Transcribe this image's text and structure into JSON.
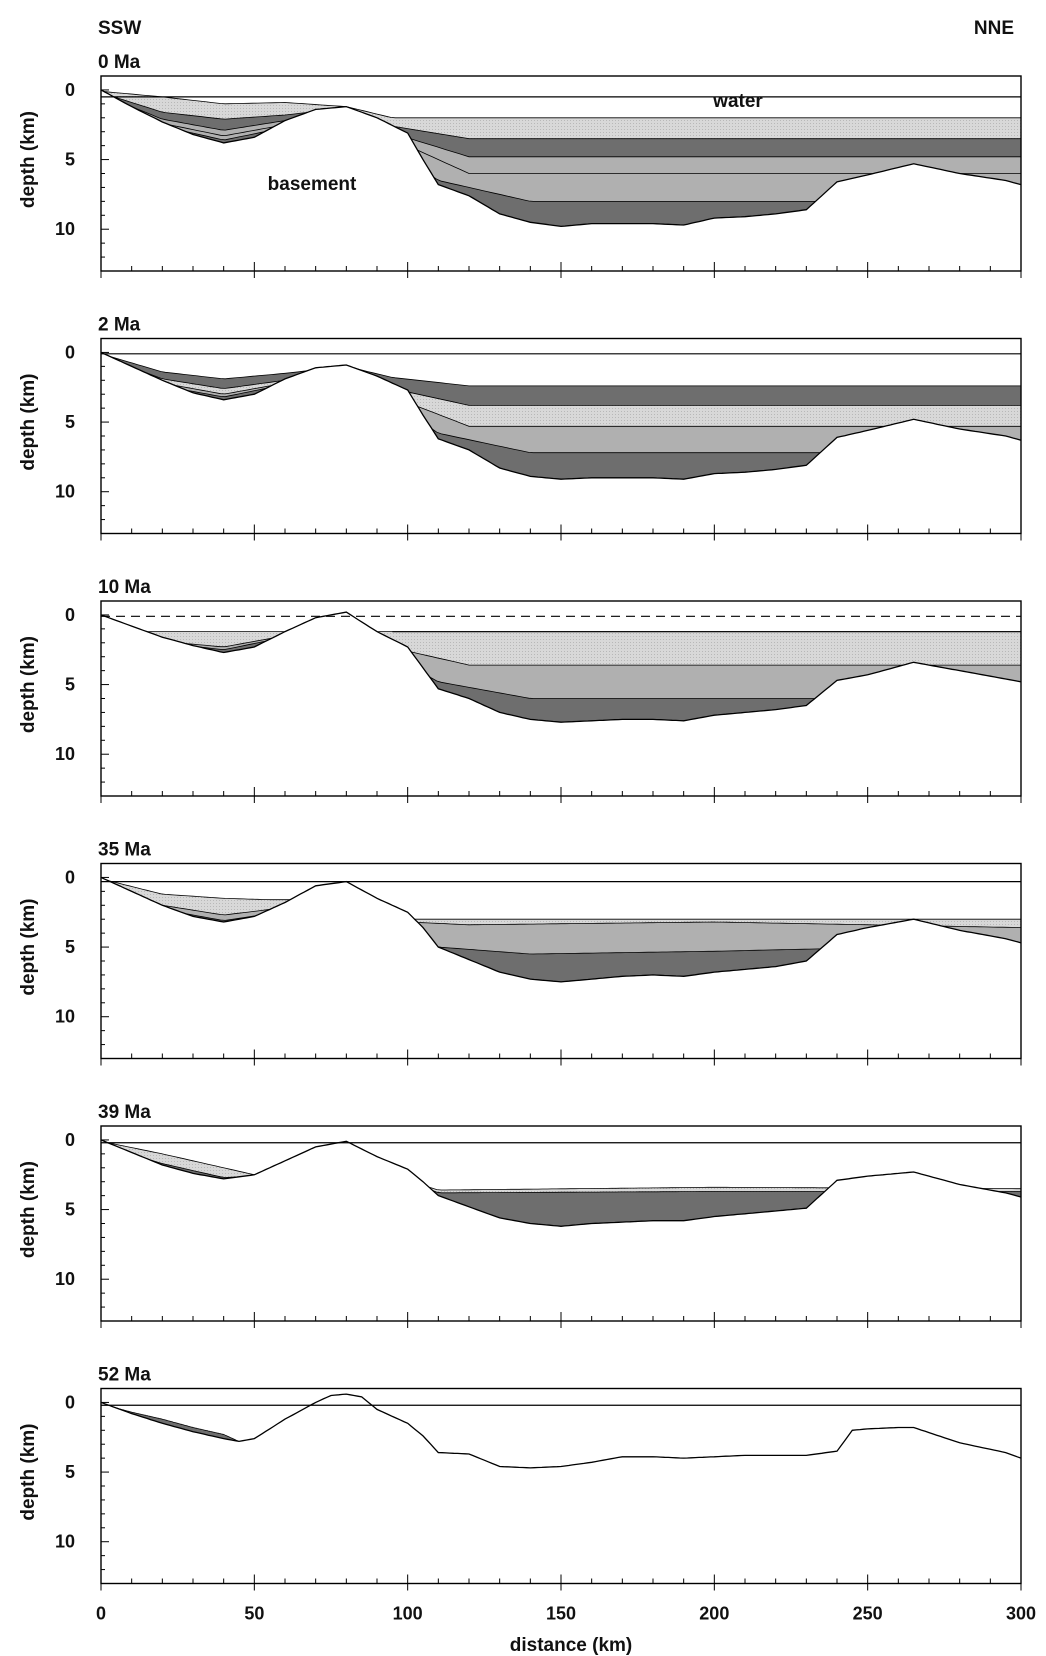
{
  "figure": {
    "left_label": "SSW",
    "right_label": "NNE",
    "water_label": "water",
    "basement_label": "basement"
  },
  "colors": {
    "water_layer": "#ffffff",
    "layer_light": "#d3d3d3",
    "layer_medium": "#b0b0b0",
    "layer_dark": "#6e6e6e",
    "line": "#000000"
  },
  "chart_data": [
    {
      "type": "area",
      "title": "0 Ma",
      "xlabel": "",
      "ylabel": "depth (km)",
      "xlim": [
        0,
        300
      ],
      "ylim": [
        13,
        -1
      ],
      "yticks": [
        "0",
        "5",
        "10"
      ],
      "sea_level": 0.5,
      "sea_level_style": "solid",
      "basement_profile": {
        "x": [
          0,
          10,
          20,
          30,
          40,
          50,
          60,
          70,
          80,
          90,
          100,
          105,
          110,
          120,
          130,
          140,
          150,
          160,
          170,
          180,
          190,
          200,
          210,
          220,
          230,
          240,
          250,
          265,
          280,
          295,
          300
        ],
        "depth": [
          0,
          1.2,
          2.3,
          3.2,
          3.8,
          3.4,
          2.2,
          1.4,
          1.2,
          2.0,
          3.1,
          5.0,
          6.8,
          7.6,
          8.9,
          9.5,
          9.8,
          9.6,
          9.6,
          9.6,
          9.7,
          9.2,
          9.1,
          8.9,
          8.6,
          6.6,
          6.1,
          5.3,
          6.0,
          6.5,
          6.8
        ]
      },
      "layer_tops": [
        {
          "shade": "light",
          "x": [
            0,
            20,
            40,
            60,
            80,
            95,
            120,
            200,
            300
          ],
          "depth": [
            0.1,
            0.5,
            1.0,
            0.9,
            1.2,
            2.0,
            2.0,
            2.0,
            2.0
          ]
        },
        {
          "shade": "dark",
          "x": [
            0,
            20,
            40,
            60,
            80,
            95,
            120,
            200,
            300
          ],
          "depth": [
            0.2,
            1.6,
            2.1,
            1.8,
            1.3,
            2.6,
            3.5,
            3.5,
            3.5
          ]
        },
        {
          "shade": "medium",
          "x": [
            0,
            20,
            40,
            60,
            80,
            95,
            120,
            200,
            300
          ],
          "depth": [
            0.3,
            2.1,
            2.9,
            2.2,
            1.4,
            3.1,
            4.8,
            4.8,
            4.8
          ]
        },
        {
          "shade": "medium",
          "x": [
            0,
            20,
            40,
            60,
            80,
            100,
            120,
            200,
            300
          ],
          "depth": [
            0.4,
            2.4,
            3.3,
            2.5,
            1.5,
            4.0,
            6.0,
            6.0,
            6.0
          ]
        },
        {
          "shade": "dark",
          "x": [
            0,
            20,
            40,
            60,
            80,
            110,
            140,
            200,
            300
          ],
          "depth": [
            0.5,
            2.6,
            3.6,
            2.7,
            1.6,
            6.5,
            8.0,
            8.0,
            8.0
          ]
        }
      ]
    },
    {
      "type": "area",
      "title": "2 Ma",
      "xlabel": "",
      "ylabel": "depth (km)",
      "xlim": [
        0,
        300
      ],
      "ylim": [
        13,
        -1
      ],
      "yticks": [
        "0",
        "5",
        "10"
      ],
      "sea_level": 0.1,
      "sea_level_style": "solid",
      "basement_profile": {
        "x": [
          0,
          10,
          20,
          30,
          40,
          50,
          60,
          70,
          80,
          90,
          100,
          105,
          110,
          120,
          130,
          140,
          150,
          160,
          170,
          180,
          190,
          200,
          210,
          220,
          230,
          240,
          250,
          265,
          280,
          295,
          300
        ],
        "depth": [
          0,
          1.0,
          2.0,
          2.9,
          3.4,
          3.0,
          1.9,
          1.1,
          0.9,
          1.7,
          2.7,
          4.5,
          6.2,
          7.0,
          8.3,
          8.9,
          9.1,
          9.0,
          9.0,
          9.0,
          9.1,
          8.7,
          8.6,
          8.4,
          8.1,
          6.1,
          5.6,
          4.8,
          5.5,
          6.0,
          6.3
        ]
      },
      "layer_tops": [
        {
          "shade": "dark",
          "x": [
            0,
            20,
            40,
            60,
            80,
            95,
            120,
            200,
            300
          ],
          "depth": [
            0.1,
            1.4,
            1.9,
            1.5,
            1.0,
            1.8,
            2.4,
            2.4,
            2.4
          ]
        },
        {
          "shade": "light",
          "x": [
            0,
            20,
            40,
            60,
            80,
            95,
            120,
            200,
            300
          ],
          "depth": [
            0.2,
            1.9,
            2.6,
            2.0,
            1.1,
            2.6,
            3.8,
            3.8,
            3.8
          ]
        },
        {
          "shade": "medium",
          "x": [
            0,
            20,
            40,
            60,
            80,
            100,
            120,
            200,
            300
          ],
          "depth": [
            0.3,
            2.2,
            3.0,
            2.2,
            1.2,
            3.6,
            5.3,
            5.3,
            5.3
          ]
        },
        {
          "shade": "dark",
          "x": [
            0,
            20,
            40,
            60,
            80,
            110,
            140,
            200,
            300
          ],
          "depth": [
            0.4,
            2.4,
            3.2,
            2.3,
            1.3,
            5.8,
            7.2,
            7.2,
            7.2
          ]
        }
      ]
    },
    {
      "type": "area",
      "title": "10 Ma",
      "xlabel": "",
      "ylabel": "depth (km)",
      "xlim": [
        0,
        300
      ],
      "ylim": [
        13,
        -1
      ],
      "yticks": [
        "0",
        "5",
        "10"
      ],
      "sea_level": 0.1,
      "sea_level_style": "dashed",
      "sediment_fill_level": 1.2,
      "basement_profile": {
        "x": [
          0,
          10,
          20,
          30,
          40,
          50,
          60,
          70,
          80,
          90,
          100,
          105,
          110,
          120,
          130,
          140,
          150,
          160,
          170,
          180,
          190,
          200,
          210,
          220,
          230,
          240,
          250,
          265,
          280,
          295,
          300
        ],
        "depth": [
          0,
          0.8,
          1.6,
          2.2,
          2.7,
          2.3,
          1.2,
          0.2,
          -0.2,
          1.2,
          2.3,
          3.8,
          5.3,
          6.0,
          7.0,
          7.5,
          7.7,
          7.6,
          7.5,
          7.5,
          7.6,
          7.2,
          7.0,
          6.8,
          6.5,
          4.7,
          4.3,
          3.4,
          4.0,
          4.6,
          4.8
        ]
      },
      "layer_tops": [
        {
          "shade": "light",
          "x": [
            0,
            20,
            40,
            55,
            80,
            95,
            120,
            200,
            300
          ],
          "depth": [
            1.2,
            1.2,
            1.2,
            1.2,
            1.2,
            1.2,
            1.2,
            1.2,
            1.2
          ]
        },
        {
          "shade": "medium",
          "x": [
            0,
            20,
            40,
            60,
            80,
            100,
            120,
            200,
            300
          ],
          "depth": [
            1.3,
            1.9,
            2.3,
            1.5,
            1.2,
            2.6,
            3.6,
            3.6,
            3.6
          ]
        },
        {
          "shade": "dark",
          "x": [
            0,
            20,
            40,
            60,
            80,
            110,
            140,
            200,
            300
          ],
          "depth": [
            1.4,
            2.0,
            2.5,
            1.6,
            1.2,
            4.8,
            6.0,
            6.0,
            6.0
          ]
        }
      ]
    },
    {
      "type": "area",
      "title": "35 Ma",
      "xlabel": "",
      "ylabel": "depth (km)",
      "xlim": [
        0,
        300
      ],
      "ylim": [
        13,
        -1
      ],
      "yticks": [
        "0",
        "5",
        "10"
      ],
      "sea_level": 0.3,
      "sea_level_style": "solid",
      "basement_profile": {
        "x": [
          0,
          10,
          20,
          30,
          40,
          50,
          60,
          70,
          80,
          90,
          100,
          105,
          110,
          120,
          130,
          140,
          150,
          160,
          170,
          180,
          190,
          200,
          210,
          220,
          230,
          240,
          250,
          265,
          280,
          295,
          300
        ],
        "depth": [
          0,
          1.0,
          2.0,
          2.8,
          3.2,
          2.8,
          1.8,
          0.6,
          0.3,
          1.5,
          2.5,
          3.6,
          5.0,
          5.9,
          6.8,
          7.3,
          7.5,
          7.3,
          7.1,
          7.0,
          7.1,
          6.8,
          6.6,
          6.4,
          6.0,
          4.1,
          3.6,
          3.0,
          3.8,
          4.4,
          4.7
        ]
      },
      "layer_tops": [
        {
          "shade": "light",
          "x": [
            0,
            20,
            40,
            55,
            70,
            100,
            110,
            200,
            300
          ],
          "depth": [
            0.1,
            1.2,
            1.5,
            1.6,
            1.6,
            3.0,
            3.0,
            3.0,
            3.0
          ]
        },
        {
          "shade": "medium",
          "x": [
            0,
            20,
            40,
            55,
            70,
            100,
            120,
            200,
            300
          ],
          "depth": [
            0.3,
            2.0,
            2.7,
            2.3,
            1.8,
            3.2,
            3.4,
            3.2,
            3.6
          ]
        },
        {
          "shade": "dark",
          "x": [
            0,
            20,
            40,
            55,
            70,
            110,
            140,
            200,
            300
          ],
          "depth": [
            0.5,
            2.3,
            3.1,
            2.6,
            1.9,
            5.0,
            5.5,
            5.3,
            4.8
          ]
        }
      ]
    },
    {
      "type": "area",
      "title": "39 Ma",
      "xlabel": "",
      "ylabel": "depth (km)",
      "xlim": [
        0,
        300
      ],
      "ylim": [
        13,
        -1
      ],
      "yticks": [
        "0",
        "5",
        "10"
      ],
      "sea_level": 0.2,
      "sea_level_style": "solid",
      "basement_profile": {
        "x": [
          0,
          10,
          20,
          30,
          40,
          50,
          60,
          70,
          80,
          90,
          100,
          105,
          110,
          120,
          130,
          140,
          150,
          160,
          170,
          180,
          190,
          200,
          210,
          220,
          230,
          240,
          250,
          265,
          280,
          295,
          300
        ],
        "depth": [
          0,
          0.9,
          1.8,
          2.4,
          2.8,
          2.5,
          1.5,
          0.5,
          0.1,
          1.2,
          2.1,
          3.0,
          4.0,
          4.8,
          5.6,
          6.0,
          6.2,
          6.0,
          5.9,
          5.8,
          5.8,
          5.5,
          5.3,
          5.1,
          4.9,
          2.9,
          2.6,
          2.3,
          3.2,
          3.8,
          4.1
        ]
      },
      "layer_tops": [
        {
          "shade": "light",
          "x": [
            0,
            20,
            40,
            50,
            60,
            100,
            110,
            200,
            300
          ],
          "depth": [
            0.1,
            1.0,
            2.0,
            2.5,
            2.4,
            2.9,
            3.6,
            3.4,
            3.5
          ]
        },
        {
          "shade": "dark",
          "x": [
            0,
            20,
            40,
            50,
            60,
            100,
            110,
            200,
            300
          ],
          "depth": [
            0.3,
            1.7,
            2.7,
            2.6,
            2.5,
            2.9,
            3.8,
            3.7,
            3.7
          ]
        }
      ]
    },
    {
      "type": "area",
      "title": "52 Ma",
      "xlabel": "distance (km)",
      "ylabel": "depth (km)",
      "xlim": [
        0,
        300
      ],
      "ylim": [
        13,
        -1
      ],
      "xticks": [
        "0",
        "50",
        "100",
        "150",
        "200",
        "250",
        "300"
      ],
      "yticks": [
        "0",
        "5",
        "10"
      ],
      "sea_level": 0.2,
      "sea_level_style": "solid",
      "basement_profile": {
        "x": [
          0,
          10,
          20,
          30,
          40,
          45,
          50,
          60,
          70,
          75,
          80,
          85,
          90,
          100,
          105,
          110,
          120,
          130,
          140,
          150,
          160,
          170,
          180,
          190,
          200,
          210,
          220,
          230,
          240,
          245,
          250,
          260,
          265,
          280,
          295,
          300
        ],
        "depth": [
          0,
          0.8,
          1.5,
          2.1,
          2.6,
          2.8,
          2.6,
          1.2,
          0.0,
          -0.5,
          -0.6,
          -0.4,
          0.5,
          1.5,
          2.4,
          3.6,
          3.7,
          4.6,
          4.7,
          4.6,
          4.3,
          3.9,
          3.9,
          4.0,
          3.9,
          3.8,
          3.8,
          3.8,
          3.5,
          2.0,
          1.9,
          1.8,
          1.8,
          2.9,
          3.6,
          4.0
        ]
      },
      "layer_tops": [
        {
          "shade": "dark",
          "x": [
            0,
            10,
            20,
            30,
            40,
            45
          ],
          "depth": [
            0.1,
            0.7,
            1.2,
            1.8,
            2.3,
            2.8
          ]
        }
      ]
    }
  ]
}
